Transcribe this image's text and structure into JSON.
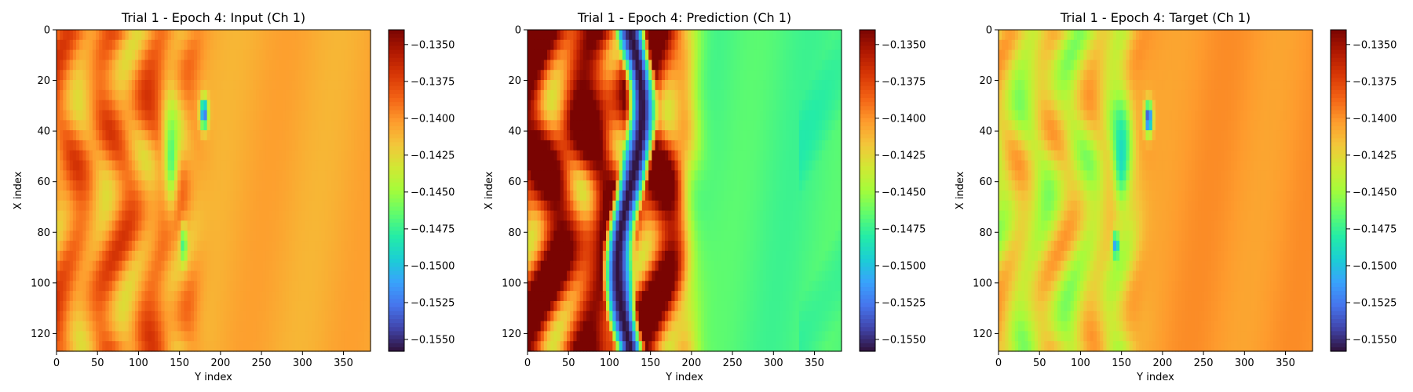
{
  "figure": {
    "background": "#ffffff",
    "colormap": "turbo",
    "colormap_stops": [
      "#30123b",
      "#4145ab",
      "#4675ed",
      "#39a2fc",
      "#1bcfd4",
      "#24eca6",
      "#61fc6c",
      "#a4fc3b",
      "#d1e834",
      "#f3c63a",
      "#fe9b2d",
      "#f36315",
      "#d93806",
      "#b11901",
      "#7a0402"
    ]
  },
  "chart_data": [
    {
      "type": "heatmap",
      "title": "Trial 1 - Epoch 4: Input (Ch 1)",
      "xlabel": "Y index",
      "ylabel": "X index",
      "xlim": [
        0,
        383
      ],
      "ylim": [
        127,
        0
      ],
      "xticks": [
        0,
        50,
        100,
        150,
        200,
        250,
        300,
        350
      ],
      "yticks": [
        0,
        20,
        40,
        60,
        80,
        100,
        120
      ],
      "colorbar": {
        "vmin": -0.1558,
        "vmax": -0.134,
        "ticks": [
          -0.135,
          -0.1375,
          -0.14,
          -0.1425,
          -0.145,
          -0.1475,
          -0.15,
          -0.1525,
          -0.155
        ],
        "tick_labels": [
          "−0.1350",
          "−0.1375",
          "−0.1400",
          "−0.1425",
          "−0.1450",
          "−0.1475",
          "−0.1500",
          "−0.1525",
          "−0.1550"
        ]
      },
      "field": {
        "background": -0.1408,
        "front_y": 165,
        "left_level": -0.1398,
        "left_amp": 0.003,
        "stripe_freq": 0.11,
        "x_freq": 0.07,
        "spots": [
          {
            "x": 33,
            "y": 180,
            "value": -0.1535,
            "rx": 5,
            "ry": 4
          },
          {
            "x": 50,
            "y": 140,
            "value": -0.147,
            "rx": 18,
            "ry": 8
          },
          {
            "x": 85,
            "y": 155,
            "value": -0.148,
            "rx": 6,
            "ry": 3
          }
        ]
      }
    },
    {
      "type": "heatmap",
      "title": "Trial 1 - Epoch 4: Prediction (Ch 1)",
      "xlabel": "Y index",
      "ylabel": "X index",
      "xlim": [
        0,
        383
      ],
      "ylim": [
        127,
        0
      ],
      "xticks": [
        0,
        50,
        100,
        150,
        200,
        250,
        300,
        350
      ],
      "yticks": [
        0,
        20,
        40,
        60,
        80,
        100,
        120
      ],
      "colorbar": {
        "vmin": -0.1558,
        "vmax": -0.134,
        "ticks": [
          -0.135,
          -0.1375,
          -0.14,
          -0.1425,
          -0.145,
          -0.1475,
          -0.15,
          -0.1525,
          -0.155
        ],
        "tick_labels": [
          "−0.1350",
          "−0.1375",
          "−0.1400",
          "−0.1425",
          "−0.1450",
          "−0.1475",
          "−0.1500",
          "−0.1525",
          "−0.1550"
        ]
      },
      "field": {
        "background": -0.147,
        "front_y": 195,
        "left_level": -0.136,
        "left_amp": 0.007,
        "stripe_freq": 0.09,
        "x_freq": 0.06,
        "dark_band": {
          "center_y": 125,
          "width": 40,
          "value": -0.1558
        },
        "spots": []
      }
    },
    {
      "type": "heatmap",
      "title": "Trial 1 - Epoch 4: Target (Ch 1)",
      "xlabel": "Y index",
      "ylabel": "X index",
      "xlim": [
        0,
        383
      ],
      "ylim": [
        127,
        0
      ],
      "xticks": [
        0,
        50,
        100,
        150,
        200,
        250,
        300,
        350
      ],
      "yticks": [
        0,
        20,
        40,
        60,
        80,
        100,
        120
      ],
      "colorbar": {
        "vmin": -0.1558,
        "vmax": -0.134,
        "ticks": [
          -0.135,
          -0.1375,
          -0.14,
          -0.1425,
          -0.145,
          -0.1475,
          -0.15,
          -0.1525,
          -0.155
        ],
        "tick_labels": [
          "−0.1350",
          "−0.1375",
          "−0.1400",
          "−0.1425",
          "−0.1450",
          "−0.1475",
          "−0.1500",
          "−0.1525",
          "−0.1550"
        ]
      },
      "field": {
        "background": -0.1402,
        "front_y": 165,
        "left_level": -0.143,
        "left_amp": 0.003,
        "stripe_freq": 0.11,
        "x_freq": 0.07,
        "spots": [
          {
            "x": 35,
            "y": 183,
            "value": -0.155,
            "rx": 5,
            "ry": 4
          },
          {
            "x": 50,
            "y": 150,
            "value": -0.149,
            "rx": 18,
            "ry": 9
          },
          {
            "x": 85,
            "y": 143,
            "value": -0.152,
            "rx": 4,
            "ry": 3
          }
        ]
      }
    }
  ]
}
